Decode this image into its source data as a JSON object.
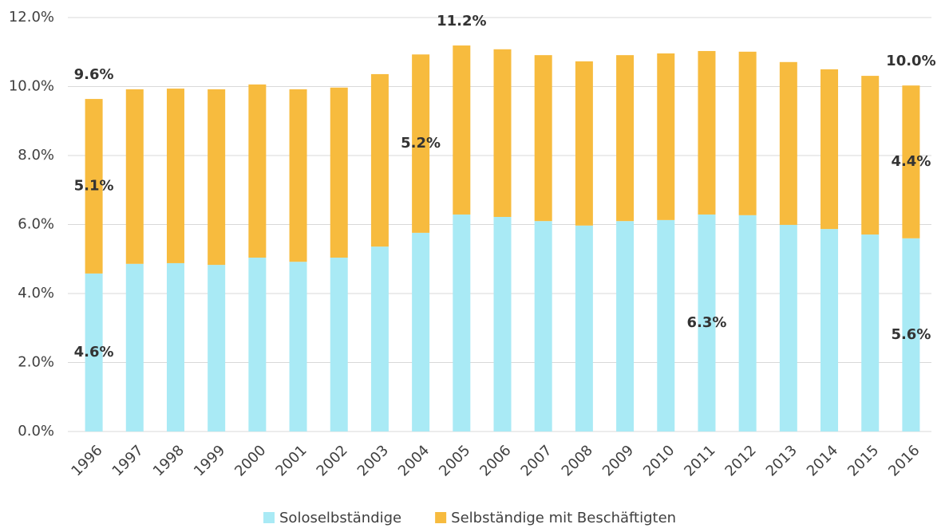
{
  "chart_data": {
    "type": "stacked_bar",
    "categories": [
      "1996",
      "1997",
      "1998",
      "1999",
      "2000",
      "2001",
      "2002",
      "2003",
      "2004",
      "2005",
      "2006",
      "2007",
      "2008",
      "2009",
      "2010",
      "2011",
      "2012",
      "2013",
      "2014",
      "2015",
      "2016"
    ],
    "series": [
      {
        "name": "Soloselbständige",
        "color": "#a9eaf5",
        "values": [
          4.58,
          4.86,
          4.88,
          4.83,
          5.04,
          4.92,
          5.04,
          5.36,
          5.76,
          6.29,
          6.22,
          6.1,
          5.97,
          6.1,
          6.13,
          6.29,
          6.27,
          5.99,
          5.87,
          5.71,
          5.6
        ],
        "value_labels": [
          "4.6%",
          null,
          null,
          null,
          null,
          null,
          null,
          null,
          null,
          null,
          null,
          null,
          null,
          null,
          null,
          "6.3%",
          null,
          null,
          null,
          null,
          "5.6%"
        ]
      },
      {
        "name": "Selbständige mit Beschäftigten",
        "color": "#f7bb3e",
        "values": [
          5.06,
          5.06,
          5.06,
          5.09,
          5.02,
          5.0,
          4.93,
          5.0,
          5.17,
          4.9,
          4.86,
          4.81,
          4.76,
          4.81,
          4.83,
          4.74,
          4.74,
          4.72,
          4.63,
          4.6,
          4.43
        ],
        "value_labels": [
          "5.1%",
          null,
          null,
          null,
          null,
          null,
          null,
          null,
          "5.2%",
          null,
          null,
          null,
          null,
          null,
          null,
          null,
          null,
          null,
          null,
          null,
          "4.4%"
        ]
      }
    ],
    "annotations": [
      {
        "category": "1996",
        "text": "9.6%"
      },
      {
        "category": "2005",
        "text": "11.2%"
      },
      {
        "category": "2016",
        "text": "10.0%"
      }
    ],
    "ylim": [
      0,
      12
    ],
    "yticks": [
      {
        "value": 0,
        "label": "0.0%"
      },
      {
        "value": 2,
        "label": "2.0%"
      },
      {
        "value": 4,
        "label": "4.0%"
      },
      {
        "value": 6,
        "label": "6.0%"
      },
      {
        "value": 8,
        "label": "8.0%"
      },
      {
        "value": 10,
        "label": "10.0%"
      },
      {
        "value": 12,
        "label": "12.0%"
      }
    ],
    "grid": true,
    "legend": "bottom"
  }
}
